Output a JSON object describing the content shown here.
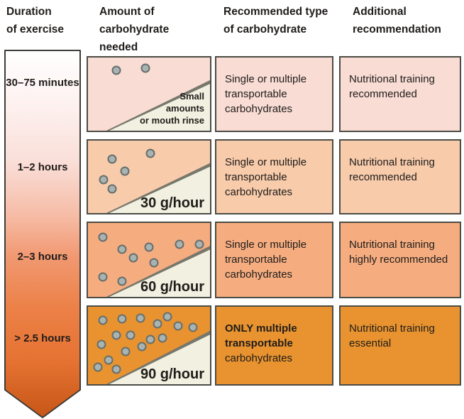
{
  "figure": {
    "headers": [
      "Duration\nof exercise",
      "Amount of\ncarbohydrate\nneeded",
      "Recommended type\nof carbohydrate",
      "Additional\nrecommendation"
    ]
  },
  "colors": {
    "box_border": "#4c4c46",
    "dot_fill": "#a9b3b1",
    "dot_border": "#666f6c",
    "triangle_fill": "#f2f0e0",
    "triangle_edge": "#77776c",
    "arrow_border": "#3c3c38",
    "arrow_gradient": [
      {
        "o": 0,
        "c": "#ffffff"
      },
      {
        "o": 15,
        "c": "#fdf1ef"
      },
      {
        "o": 30,
        "c": "#fadfd9"
      },
      {
        "o": 45,
        "c": "#f6bca6"
      },
      {
        "o": 56,
        "c": "#f19972"
      },
      {
        "o": 70,
        "c": "#ec8148"
      },
      {
        "o": 85,
        "c": "#e57231"
      },
      {
        "o": 100,
        "c": "#c65617"
      }
    ]
  },
  "rows": [
    {
      "duration": "30–75 minutes",
      "amount_note": "Small\namounts\nor mouth rinse",
      "amount_value": "",
      "dot_count": 2,
      "dots": [
        {
          "x": 23,
          "y": 17
        },
        {
          "x": 47,
          "y": 15
        }
      ],
      "type_bold": "",
      "type_text": "Single or multiple transportable carbohydrates",
      "additional": "Nutritional training recommended",
      "row_color": "#f9dcd4"
    },
    {
      "duration": "1–2 hours",
      "amount_note": "",
      "amount_value": "30 g/hour",
      "dot_count": 5,
      "dots": [
        {
          "x": 20,
          "y": 25
        },
        {
          "x": 51,
          "y": 18
        },
        {
          "x": 30,
          "y": 42
        },
        {
          "x": 13,
          "y": 54
        },
        {
          "x": 20,
          "y": 67
        }
      ],
      "type_bold": "",
      "type_text": "Single or multiple transportable carbohydrates",
      "additional": "Nutritional training recommended",
      "row_color": "#f8cbab"
    },
    {
      "duration": "2–3 hours",
      "amount_note": "",
      "amount_value": "60 g/hour",
      "dot_count": 9,
      "dots": [
        {
          "x": 12,
          "y": 19
        },
        {
          "x": 28,
          "y": 36
        },
        {
          "x": 37,
          "y": 47
        },
        {
          "x": 50,
          "y": 33
        },
        {
          "x": 54,
          "y": 54
        },
        {
          "x": 75,
          "y": 29
        },
        {
          "x": 91,
          "y": 29
        },
        {
          "x": 12,
          "y": 73
        },
        {
          "x": 28,
          "y": 79
        }
      ],
      "type_bold": "",
      "type_text": "Single or multiple transportable carbohydrates",
      "additional": "Nutritional training highly recommended",
      "row_color": "#f5ad80"
    },
    {
      "duration": "> 2.5 hours",
      "amount_note": "",
      "amount_value": "90 g/hour",
      "dot_count": 17,
      "dots": [
        {
          "x": 12,
          "y": 17
        },
        {
          "x": 28,
          "y": 16
        },
        {
          "x": 43,
          "y": 15
        },
        {
          "x": 57,
          "y": 22
        },
        {
          "x": 65,
          "y": 13
        },
        {
          "x": 74,
          "y": 25
        },
        {
          "x": 86,
          "y": 27
        },
        {
          "x": 23,
          "y": 37
        },
        {
          "x": 35,
          "y": 37
        },
        {
          "x": 51,
          "y": 42
        },
        {
          "x": 61,
          "y": 40
        },
        {
          "x": 11,
          "y": 49
        },
        {
          "x": 31,
          "y": 58
        },
        {
          "x": 44,
          "y": 51
        },
        {
          "x": 17,
          "y": 69
        },
        {
          "x": 8,
          "y": 78
        },
        {
          "x": 23,
          "y": 81
        }
      ],
      "type_bold": "ONLY multiple transportable",
      "type_text": "carbohydrates",
      "additional": "Nutritional training essential",
      "row_color": "#e8932f"
    }
  ]
}
